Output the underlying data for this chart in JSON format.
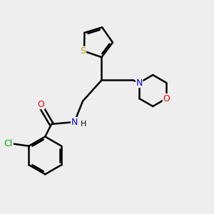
{
  "background_color": "#eeeeee",
  "bond_color": "#000000",
  "bond_width": 1.8,
  "atom_colors": {
    "S": "#b8a000",
    "N": "#0000ff",
    "O": "#ff0000",
    "Cl": "#00aa00",
    "C": "#000000",
    "H": "#000000"
  },
  "font_size": 9,
  "fig_width": 3.0,
  "fig_height": 3.0,
  "dpi": 100
}
